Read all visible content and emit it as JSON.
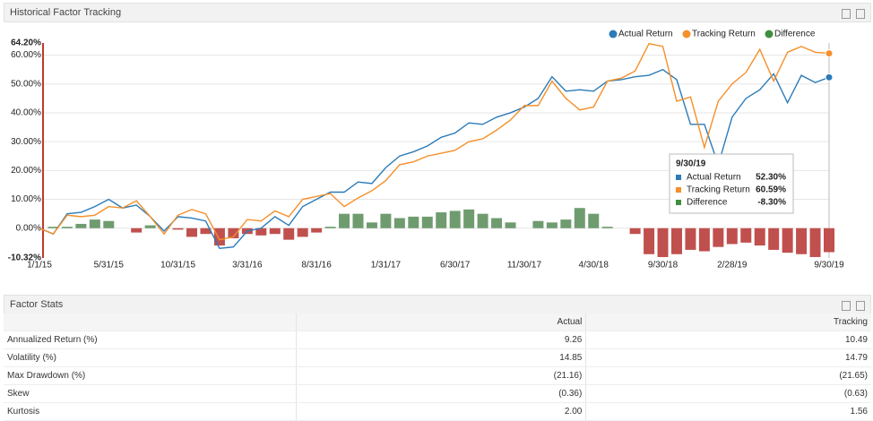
{
  "header": {
    "title": "Historical Factor Tracking"
  },
  "chart_data": {
    "type": "combo",
    "categories": [
      "1/1/15",
      null,
      null,
      null,
      null,
      "5/31/15",
      null,
      null,
      null,
      null,
      "10/31/15",
      null,
      null,
      null,
      null,
      "3/31/16",
      null,
      null,
      null,
      null,
      "8/31/16",
      null,
      null,
      null,
      null,
      "1/31/17",
      null,
      null,
      null,
      null,
      "6/30/17",
      null,
      null,
      null,
      null,
      "11/30/17",
      null,
      null,
      null,
      null,
      "4/30/18",
      null,
      null,
      null,
      null,
      "9/30/18",
      null,
      null,
      null,
      null,
      "2/28/19",
      null,
      null,
      null,
      null,
      null,
      null,
      "9/30/19"
    ],
    "series": [
      {
        "name": "Actual Return",
        "type": "line",
        "color": "#2b7bb9",
        "values": [
          0,
          -2,
          5,
          5.5,
          7.5,
          10,
          7,
          8,
          4,
          -1,
          4,
          3.5,
          2.5,
          -7,
          -6.5,
          -1,
          0,
          4,
          1,
          7.5,
          10,
          12.5,
          12.5,
          16,
          15.5,
          21,
          25,
          26.5,
          28.5,
          31.5,
          33,
          36.5,
          36,
          38.5,
          40,
          42,
          45,
          52.5,
          47.5,
          48,
          47.5,
          51,
          51.5,
          52.5,
          53,
          55,
          51.5,
          36,
          36,
          22,
          38.5,
          45,
          48,
          53.5,
          43.5,
          53,
          50.5,
          52.3
        ]
      },
      {
        "name": "Tracking Return",
        "type": "line",
        "color": "#f5902a",
        "values": [
          0,
          -2,
          4.5,
          4,
          4.5,
          7.5,
          7,
          9.5,
          4,
          -2,
          4.5,
          6.5,
          5,
          -4,
          -3,
          3,
          2.5,
          6,
          4,
          10,
          11,
          12,
          7.5,
          10.5,
          13,
          16.5,
          22,
          23,
          25,
          26,
          27,
          30,
          31,
          34,
          37.5,
          42.5,
          42.5,
          51,
          45,
          41,
          42,
          51,
          52,
          54.5,
          64,
          63,
          44,
          45.5,
          28,
          44,
          50,
          54,
          62,
          51,
          61,
          63,
          61,
          60.59
        ]
      },
      {
        "name": "Difference",
        "type": "bar",
        "color": "#6f9c6f",
        "negative_color": "#c0504d",
        "legend_color": "#3f8f3f",
        "values": [
          0,
          0.5,
          0.5,
          1.5,
          3,
          2.5,
          0,
          -1.5,
          1,
          0,
          -0.5,
          -3,
          -2,
          -6,
          -3.5,
          -2,
          -2.5,
          -2,
          -4,
          -3,
          -1.5,
          0.5,
          5,
          5,
          2,
          5,
          3.5,
          4,
          4,
          5.5,
          6,
          6.5,
          5,
          3.5,
          2,
          0,
          2.5,
          2,
          3,
          7,
          5,
          0.5,
          0,
          -2,
          -9,
          -10,
          -9,
          -7.5,
          -8,
          -6.5,
          -5.5,
          -5,
          -6,
          -7.5,
          -8.5,
          -9,
          -10,
          -8.3
        ]
      }
    ],
    "ylim": [
      -10.32,
      64.2
    ],
    "yticks": [
      {
        "value": -10.32,
        "label": "-10.32%"
      },
      {
        "value": 0,
        "label": "0.00%"
      },
      {
        "value": 10,
        "label": "10.00%"
      },
      {
        "value": 20,
        "label": "20.00%"
      },
      {
        "value": 30,
        "label": "30.00%"
      },
      {
        "value": 40,
        "label": "40.00%"
      },
      {
        "value": 50,
        "label": "50.00%"
      },
      {
        "value": 60,
        "label": "60.00%"
      },
      {
        "value": 64.2,
        "label": "64.20%"
      }
    ],
    "grid": true,
    "legend": "top-right",
    "tooltip": {
      "title": "9/30/19",
      "value_labels": [
        "52.30%",
        "60.59%",
        "-8.30%"
      ]
    }
  },
  "stats": {
    "title": "Factor Stats",
    "columns": [
      "Actual",
      "Tracking"
    ],
    "rows": [
      {
        "label": "Annualized Return (%)",
        "values": [
          "9.26",
          "10.49"
        ]
      },
      {
        "label": "Volatility (%)",
        "values": [
          "14.85",
          "14.79"
        ]
      },
      {
        "label": "Max Drawdown (%)",
        "values": [
          "(21.16)",
          "(21.65)"
        ]
      },
      {
        "label": "Skew",
        "values": [
          "(0.36)",
          "(0.63)"
        ]
      },
      {
        "label": "Kurtosis",
        "values": [
          "2.00",
          "1.56"
        ]
      }
    ]
  }
}
